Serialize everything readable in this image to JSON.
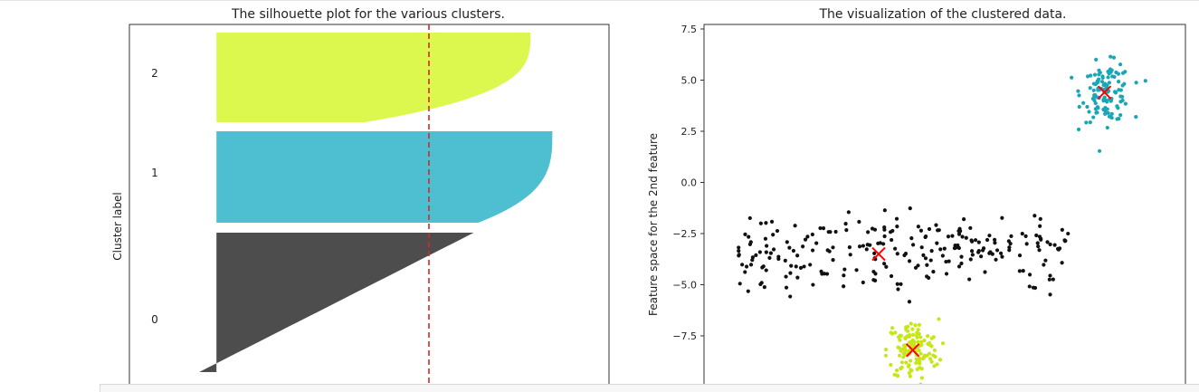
{
  "chart_data": [
    {
      "type": "silhouette",
      "title": "The silhouette plot for the various clusters.",
      "xlabel": "",
      "ylabel": "Cluster label",
      "ytick_labels": [
        "0",
        "1",
        "2"
      ],
      "avg_silhouette_line": 0.7,
      "avg_line_color": "#d62728",
      "clusters": [
        {
          "label": "0",
          "color": "#4d4d4d",
          "y_range": [
            0,
            50
          ],
          "max_coeff": 0.69,
          "min_coeff": 0.06
        },
        {
          "label": "1",
          "color": "#4dbfd0",
          "y_range": [
            60,
            110
          ],
          "max_coeff": 0.87,
          "min_coeff": 0.7
        },
        {
          "label": "2",
          "color": "#dcf84f",
          "y_range": [
            120,
            170
          ],
          "max_coeff": 0.82,
          "min_coeff": 0.44
        }
      ]
    },
    {
      "type": "scatter",
      "title": "The visualization of the clustered data.",
      "xlabel": "",
      "ylabel": "Feature space for the 2nd feature",
      "yticks": [
        "7.5",
        "5.0",
        "2.5",
        "0.0",
        "−2.5",
        "−5.0",
        "−7.5"
      ],
      "ytick_values": [
        7.5,
        5.0,
        2.5,
        0.0,
        -2.5,
        -5.0,
        -7.5
      ],
      "ylim": [
        -9.2,
        7.7
      ],
      "xlim": [
        -11.6,
        11.0
      ],
      "centroid_color": "#ff0000",
      "series": [
        {
          "color": "#111111",
          "center": [
            -2.8,
            -3.3
          ],
          "spread": [
            3.2,
            1.0
          ],
          "count": 240,
          "clusters_extra_centroids": [
            [
              -3.4,
              -3.5
            ]
          ]
        },
        {
          "color": "#1aa6b7",
          "center": [
            7.3,
            4.4
          ],
          "spread": [
            1.05,
            0.95
          ],
          "count": 120
        },
        {
          "color": "#c8e617",
          "center": [
            -1.8,
            -8.2
          ],
          "spread": [
            1.1,
            1.0
          ],
          "count": 130
        }
      ],
      "centroids": [
        [
          -3.4,
          -3.5
        ],
        [
          7.2,
          4.4
        ],
        [
          -1.8,
          -8.2
        ]
      ]
    }
  ]
}
